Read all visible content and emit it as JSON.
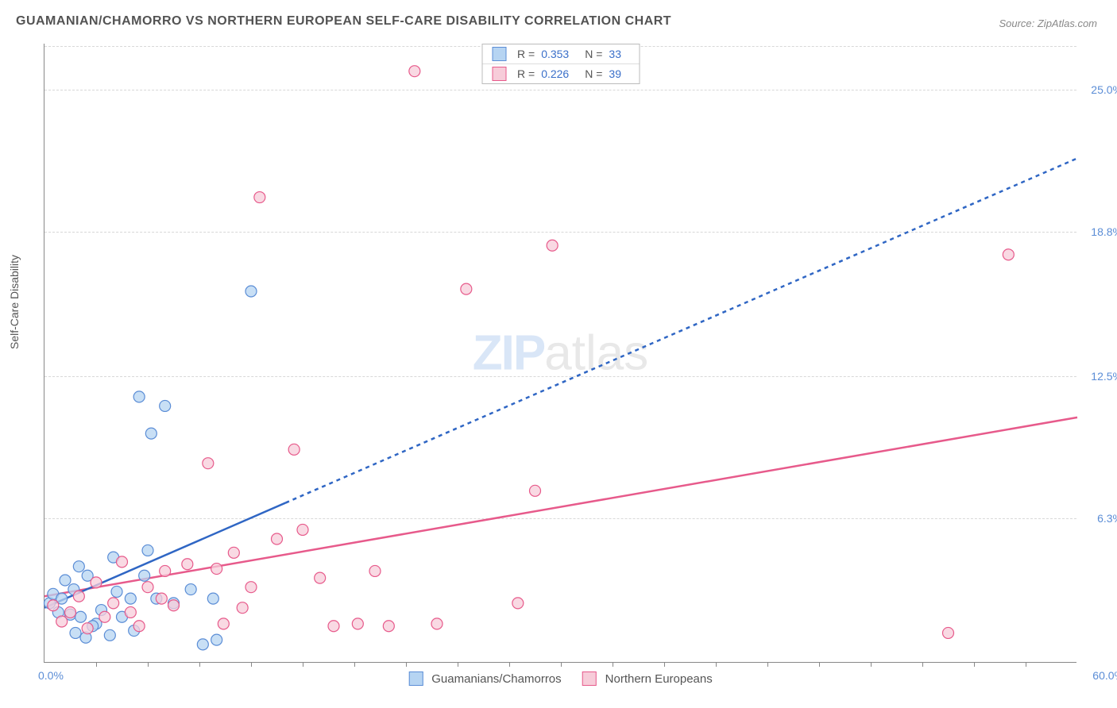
{
  "title": "GUAMANIAN/CHAMORRO VS NORTHERN EUROPEAN SELF-CARE DISABILITY CORRELATION CHART",
  "source": "Source: ZipAtlas.com",
  "ylabel": "Self-Care Disability",
  "watermark_a": "ZIP",
  "watermark_b": "atlas",
  "chart": {
    "type": "scatter",
    "xlim": [
      0,
      60
    ],
    "ylim": [
      0,
      27
    ],
    "x_tick_labels": {
      "min": "0.0%",
      "max": "60.0%"
    },
    "y_tick_labels": [
      "6.3%",
      "12.5%",
      "18.8%",
      "25.0%"
    ],
    "y_tick_values": [
      6.3,
      12.5,
      18.8,
      25.0
    ],
    "x_minor_ticks": [
      3,
      6,
      9,
      12,
      15,
      18,
      21,
      24,
      27,
      30,
      33,
      36,
      39,
      42,
      45,
      48,
      51,
      54,
      57
    ],
    "grid_color": "#d8d8d8",
    "axis_color": "#888888",
    "background_color": "#ffffff",
    "point_radius": 7,
    "series": [
      {
        "name": "Guamanians/Chamorros",
        "color_fill": "#b6d4f2",
        "color_stroke": "#5b8dd6",
        "R": "0.353",
        "N": "33",
        "trend": {
          "x1": 0,
          "y1": 2.4,
          "x2": 60,
          "y2": 22.0,
          "solid_until_x": 14,
          "color": "#2f66c4",
          "width": 2.5,
          "dash": "5,5"
        },
        "points": [
          [
            0.3,
            2.6
          ],
          [
            0.5,
            3.0
          ],
          [
            0.8,
            2.2
          ],
          [
            1.0,
            2.8
          ],
          [
            1.2,
            3.6
          ],
          [
            1.5,
            2.1
          ],
          [
            1.7,
            3.2
          ],
          [
            1.8,
            1.3
          ],
          [
            2.0,
            4.2
          ],
          [
            2.1,
            2.0
          ],
          [
            2.4,
            1.1
          ],
          [
            2.5,
            3.8
          ],
          [
            3.0,
            1.7
          ],
          [
            3.3,
            2.3
          ],
          [
            3.8,
            1.2
          ],
          [
            4.0,
            4.6
          ],
          [
            4.5,
            2.0
          ],
          [
            5.0,
            2.8
          ],
          [
            5.2,
            1.4
          ],
          [
            5.5,
            11.6
          ],
          [
            5.8,
            3.8
          ],
          [
            6.2,
            10.0
          ],
          [
            6.5,
            2.8
          ],
          [
            7.0,
            11.2
          ],
          [
            7.5,
            2.6
          ],
          [
            8.5,
            3.2
          ],
          [
            9.2,
            0.8
          ],
          [
            9.8,
            2.8
          ],
          [
            10.0,
            1.0
          ],
          [
            12.0,
            16.2
          ],
          [
            6.0,
            4.9
          ],
          [
            2.8,
            1.6
          ],
          [
            4.2,
            3.1
          ]
        ]
      },
      {
        "name": "Northern Europeans",
        "color_fill": "#f7ccd9",
        "color_stroke": "#e75a8b",
        "R": "0.226",
        "N": "39",
        "trend": {
          "x1": 0,
          "y1": 2.9,
          "x2": 60,
          "y2": 10.7,
          "color": "#e75a8b",
          "width": 2.5
        },
        "points": [
          [
            0.5,
            2.5
          ],
          [
            1.0,
            1.8
          ],
          [
            1.5,
            2.2
          ],
          [
            2.0,
            2.9
          ],
          [
            2.5,
            1.5
          ],
          [
            3.0,
            3.5
          ],
          [
            3.5,
            2.0
          ],
          [
            4.0,
            2.6
          ],
          [
            4.5,
            4.4
          ],
          [
            5.0,
            2.2
          ],
          [
            5.5,
            1.6
          ],
          [
            6.0,
            3.3
          ],
          [
            7.0,
            4.0
          ],
          [
            7.5,
            2.5
          ],
          [
            8.3,
            4.3
          ],
          [
            9.5,
            8.7
          ],
          [
            10.0,
            4.1
          ],
          [
            10.4,
            1.7
          ],
          [
            11.0,
            4.8
          ],
          [
            11.5,
            2.4
          ],
          [
            12.0,
            3.3
          ],
          [
            12.5,
            20.3
          ],
          [
            13.5,
            5.4
          ],
          [
            14.5,
            9.3
          ],
          [
            15.0,
            5.8
          ],
          [
            16.0,
            3.7
          ],
          [
            16.8,
            1.6
          ],
          [
            18.2,
            1.7
          ],
          [
            19.2,
            4.0
          ],
          [
            20.0,
            1.6
          ],
          [
            21.5,
            25.8
          ],
          [
            22.8,
            1.7
          ],
          [
            24.5,
            16.3
          ],
          [
            27.5,
            2.6
          ],
          [
            28.5,
            7.5
          ],
          [
            29.5,
            18.2
          ],
          [
            52.5,
            1.3
          ],
          [
            56.0,
            17.8
          ],
          [
            6.8,
            2.8
          ]
        ]
      }
    ]
  },
  "legend_bottom": [
    {
      "label": "Guamanians/Chamorros",
      "swatch": "blue"
    },
    {
      "label": "Northern Europeans",
      "swatch": "pink"
    }
  ]
}
